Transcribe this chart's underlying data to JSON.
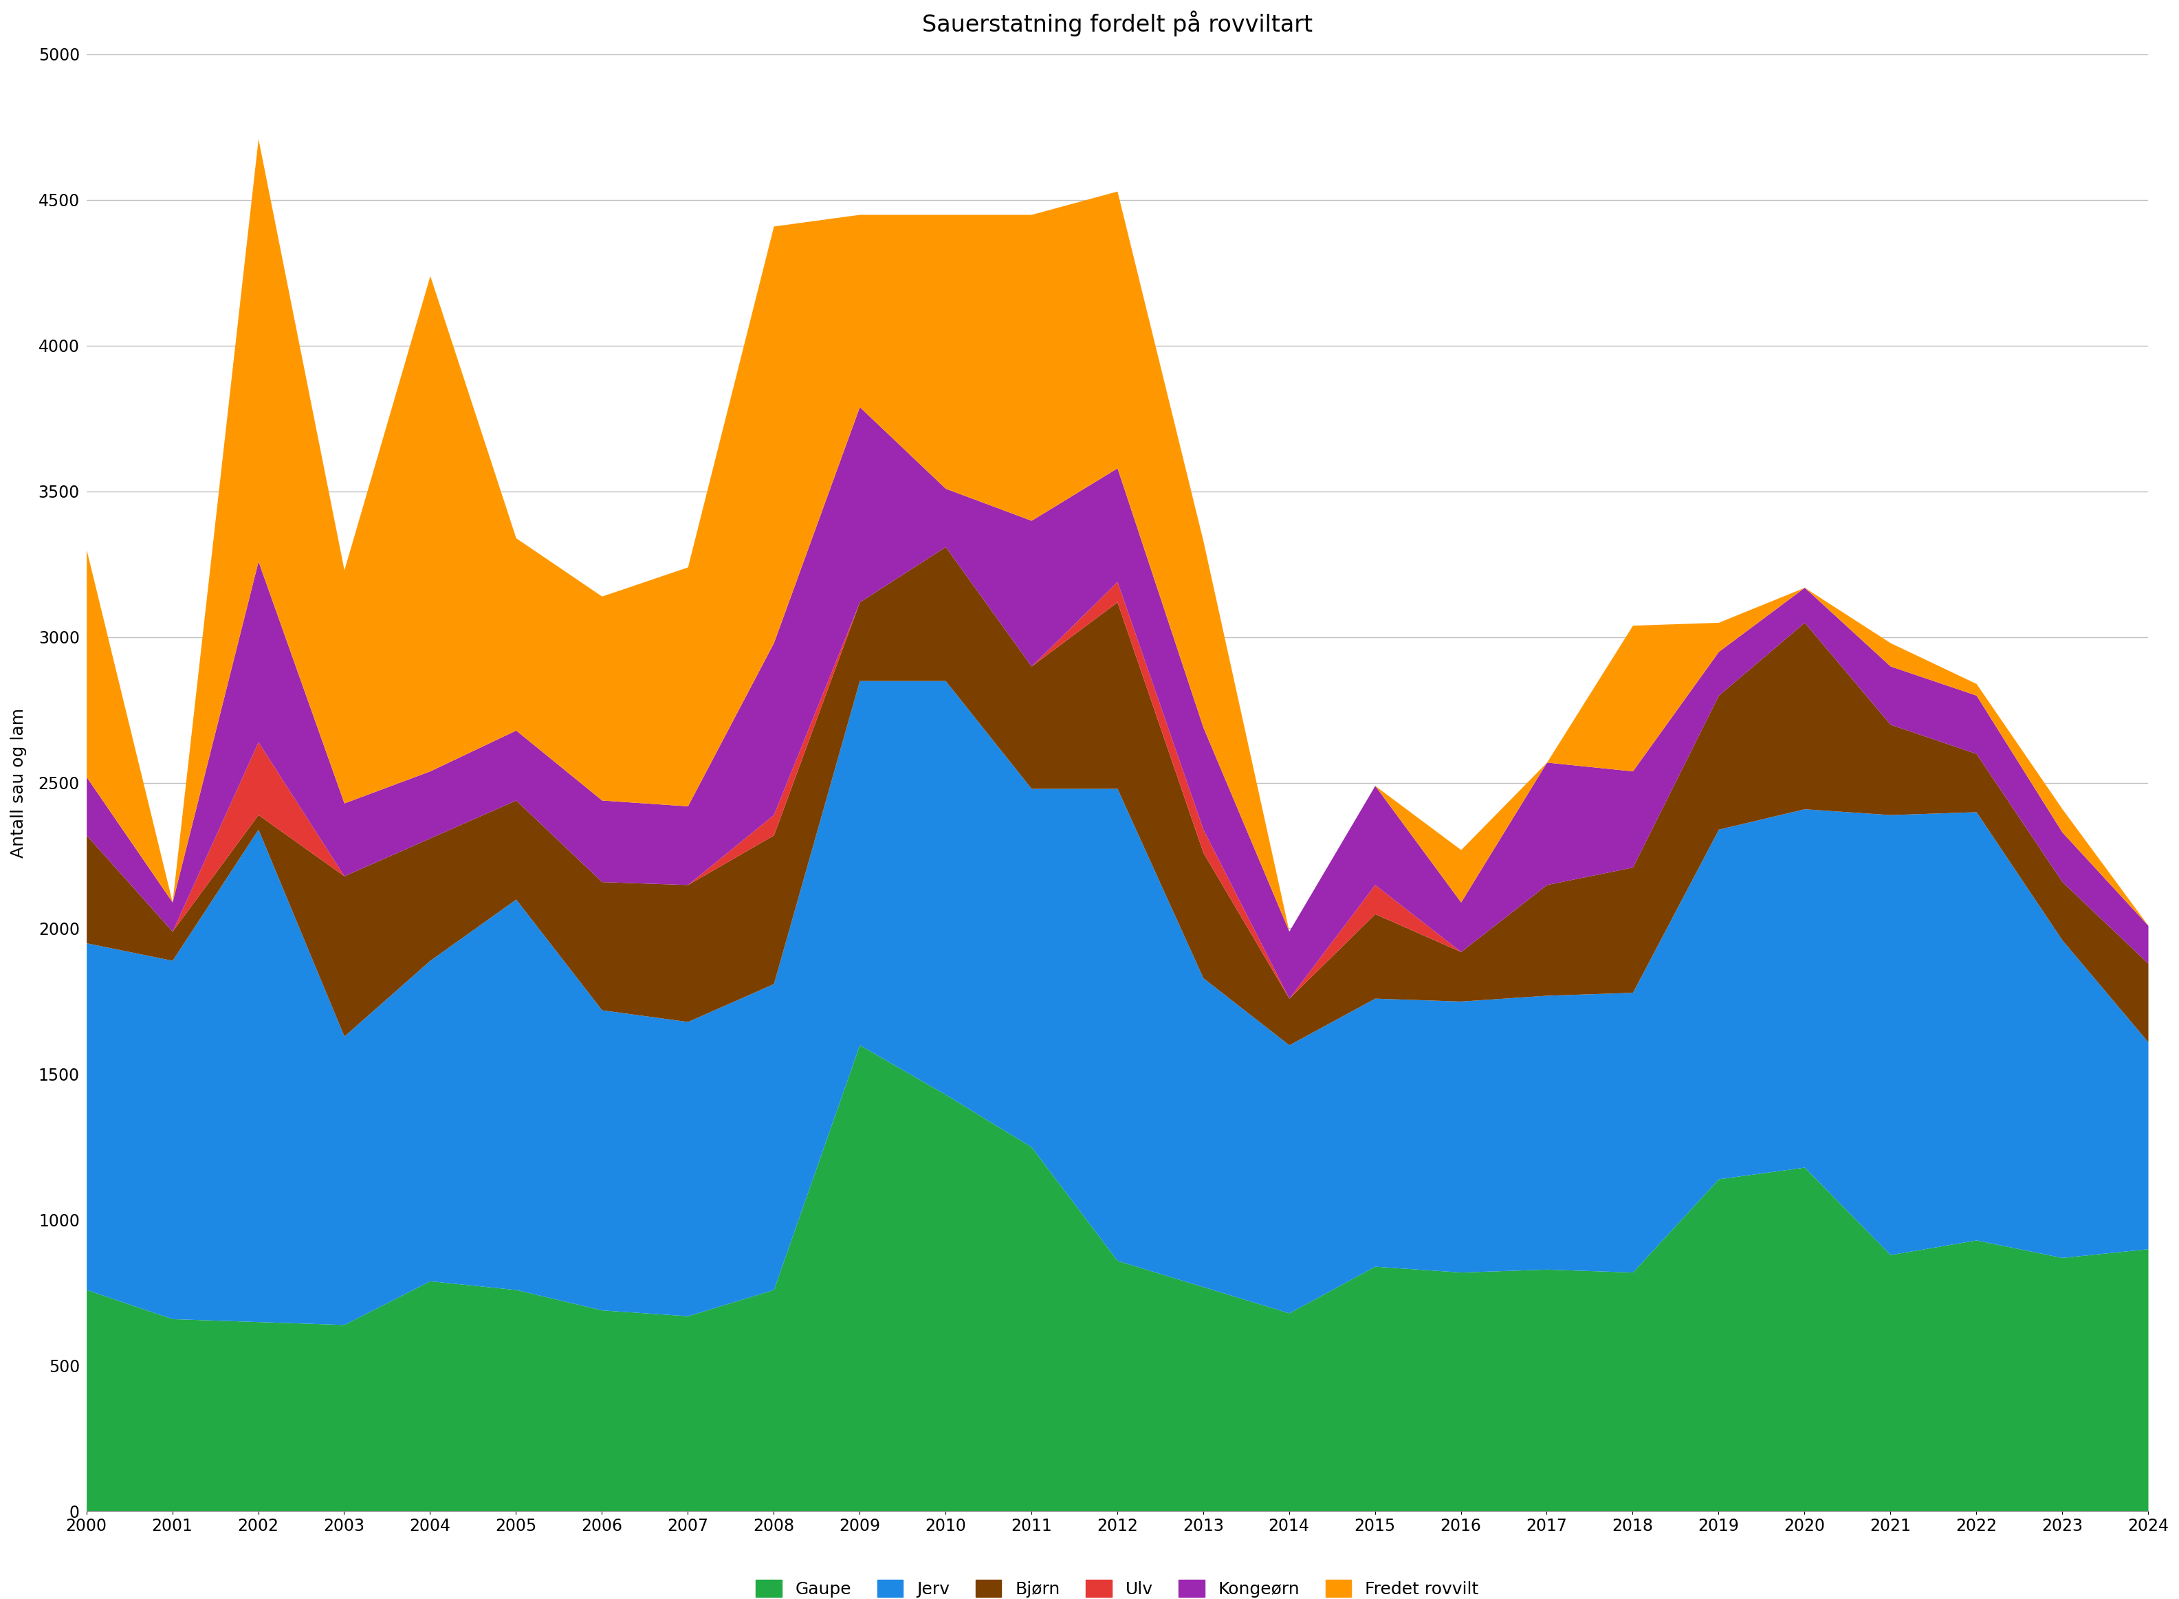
{
  "title": "Sauerstatning fordelt på rovviltart",
  "xlabel": "",
  "ylabel": "Antall sau og lam",
  "years": [
    2000,
    2001,
    2002,
    2003,
    2004,
    2005,
    2006,
    2007,
    2008,
    2009,
    2010,
    2011,
    2012,
    2013,
    2014,
    2015,
    2016,
    2017,
    2018,
    2019,
    2020,
    2021,
    2022,
    2023,
    2024
  ],
  "series": {
    "Gaupe": [
      760,
      660,
      650,
      640,
      790,
      760,
      690,
      670,
      760,
      1600,
      1430,
      1250,
      860,
      770,
      680,
      840,
      820,
      830,
      820,
      1140,
      1180,
      880,
      930,
      870,
      900
    ],
    "Jerv": [
      1190,
      1230,
      1690,
      990,
      1100,
      1340,
      1030,
      1010,
      1050,
      1250,
      1420,
      1230,
      1620,
      1060,
      920,
      920,
      930,
      940,
      960,
      1200,
      1230,
      1510,
      1470,
      1090,
      710
    ],
    "Bjørn": [
      370,
      100,
      50,
      550,
      420,
      340,
      440,
      470,
      510,
      270,
      460,
      420,
      640,
      430,
      160,
      290,
      170,
      380,
      430,
      460,
      640,
      310,
      200,
      200,
      270
    ],
    "Ulv": [
      0,
      0,
      250,
      0,
      0,
      0,
      0,
      0,
      70,
      0,
      0,
      0,
      70,
      80,
      0,
      100,
      0,
      0,
      0,
      0,
      0,
      0,
      0,
      0,
      0
    ],
    "Kongeørn": [
      200,
      100,
      620,
      250,
      230,
      240,
      280,
      270,
      590,
      670,
      200,
      500,
      390,
      350,
      230,
      340,
      170,
      420,
      330,
      150,
      120,
      200,
      200,
      170,
      130
    ],
    "Fredet rovvilt": [
      780,
      0,
      1450,
      800,
      1700,
      660,
      700,
      820,
      1430,
      660,
      940,
      1050,
      950,
      640,
      0,
      0,
      180,
      0,
      500,
      100,
      0,
      80,
      40,
      80,
      0
    ]
  },
  "colors": {
    "Gaupe": "#22AA44",
    "Jerv": "#1E88E5",
    "Bjørn": "#7B3F00",
    "Ulv": "#E53935",
    "Kongeørn": "#9C27B0",
    "Fredet rovvilt": "#FF9800"
  },
  "ylim": [
    0,
    5000
  ],
  "yticks": [
    0,
    500,
    1000,
    1500,
    2000,
    2500,
    3000,
    3500,
    4000,
    4500,
    5000
  ],
  "background_color": "#ffffff",
  "title_fontsize": 24,
  "axis_fontsize": 18,
  "tick_fontsize": 17,
  "legend_fontsize": 18
}
